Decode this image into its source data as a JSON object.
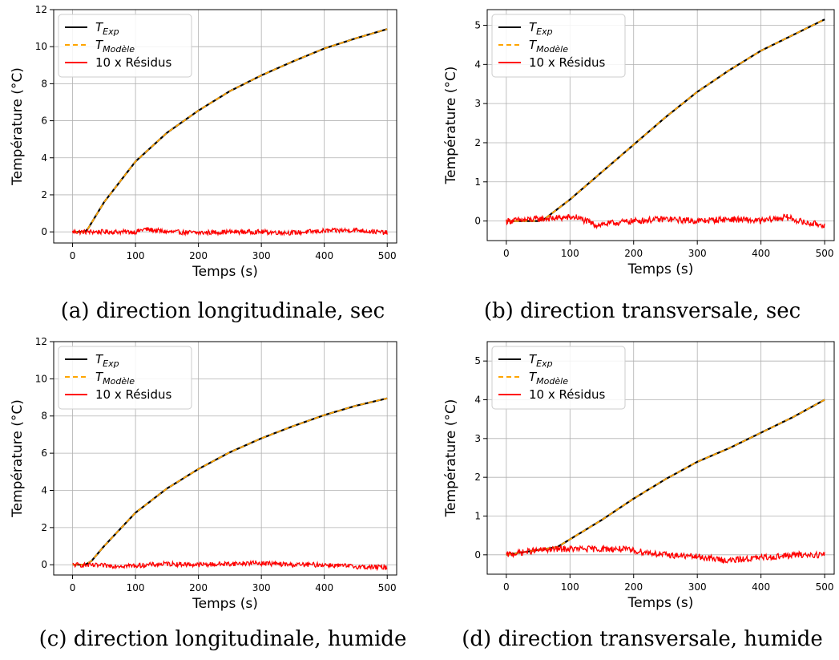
{
  "colors": {
    "exp": "#000000",
    "model": "#ffa500",
    "residus": "#ff0000",
    "grid": "#b0b0b0"
  },
  "legend_placement": "upper-left",
  "chart_data": [
    {
      "type": "line",
      "caption": "(a) direction longitudinale, sec",
      "xlabel": "Temps (s)",
      "ylabel": "Température (°C)",
      "xlim": [
        -30,
        515
      ],
      "ylim": [
        -0.6,
        12
      ],
      "xticks": [
        0,
        100,
        200,
        300,
        400,
        500
      ],
      "yticks": [
        0,
        2,
        4,
        6,
        8,
        10,
        12
      ],
      "grid": true,
      "legend": [
        "T_Exp",
        "T_Modèle",
        "10 x Résidus"
      ],
      "series": [
        {
          "name": "T_Exp",
          "x": [
            0,
            20,
            25,
            50,
            100,
            150,
            200,
            250,
            300,
            350,
            400,
            450,
            500
          ],
          "values": [
            0,
            0,
            0.2,
            1.6,
            3.8,
            5.35,
            6.55,
            7.6,
            8.45,
            9.2,
            9.9,
            10.45,
            10.95
          ]
        },
        {
          "name": "T_Modèle",
          "x": [
            0,
            20,
            25,
            50,
            100,
            150,
            200,
            250,
            300,
            350,
            400,
            450,
            500
          ],
          "values": [
            0,
            0,
            0.2,
            1.6,
            3.8,
            5.35,
            6.55,
            7.6,
            8.45,
            9.2,
            9.9,
            10.45,
            10.95
          ]
        },
        {
          "name": "10 x Résidus",
          "x": [
            0,
            50,
            100,
            115,
            150,
            200,
            250,
            300,
            350,
            400,
            450,
            500
          ],
          "values": [
            0,
            0,
            0,
            0.15,
            0,
            -0.05,
            0,
            0,
            -0.05,
            0.05,
            0.1,
            -0.05
          ]
        }
      ]
    },
    {
      "type": "line",
      "caption": "(b) direction transversale, sec",
      "xlabel": "Temps (s)",
      "ylabel": "Température (°C)",
      "xlim": [
        -30,
        515
      ],
      "ylim": [
        -0.5,
        5.4
      ],
      "xticks": [
        0,
        100,
        200,
        300,
        400,
        500
      ],
      "yticks": [
        0,
        1,
        2,
        3,
        4,
        5
      ],
      "grid": true,
      "legend": [
        "T_Exp",
        "T_Modèle",
        "10 x Résidus"
      ],
      "series": [
        {
          "name": "T_Exp",
          "x": [
            0,
            50,
            60,
            100,
            150,
            200,
            250,
            300,
            350,
            400,
            450,
            500
          ],
          "values": [
            0,
            0,
            0.05,
            0.55,
            1.25,
            1.95,
            2.65,
            3.3,
            3.85,
            4.35,
            4.75,
            5.15
          ]
        },
        {
          "name": "T_Modèle",
          "x": [
            0,
            50,
            60,
            100,
            150,
            200,
            250,
            300,
            350,
            400,
            450,
            500
          ],
          "values": [
            0,
            0,
            0.05,
            0.55,
            1.25,
            1.95,
            2.65,
            3.3,
            3.85,
            4.35,
            4.75,
            5.15
          ]
        },
        {
          "name": "10 x Résidus",
          "x": [
            0,
            50,
            110,
            140,
            200,
            250,
            300,
            350,
            400,
            440,
            470,
            500
          ],
          "values": [
            0,
            0.05,
            0.1,
            -0.1,
            0,
            0.05,
            0,
            0.05,
            0,
            0.1,
            -0.05,
            -0.1
          ]
        }
      ]
    },
    {
      "type": "line",
      "caption": "(c) direction longitudinale, humide",
      "xlabel": "Temps (s)",
      "ylabel": "Température (°C)",
      "xlim": [
        -30,
        515
      ],
      "ylim": [
        -0.55,
        12
      ],
      "xticks": [
        0,
        100,
        200,
        300,
        400,
        500
      ],
      "yticks": [
        0,
        2,
        4,
        6,
        8,
        10,
        12
      ],
      "grid": true,
      "legend": [
        "T_Exp",
        "T_Modèle",
        "10 x Résidus"
      ],
      "series": [
        {
          "name": "T_Exp",
          "x": [
            0,
            20,
            30,
            50,
            100,
            150,
            200,
            250,
            300,
            350,
            400,
            450,
            500
          ],
          "values": [
            0,
            0,
            0.2,
            1.0,
            2.8,
            4.1,
            5.15,
            6.05,
            6.8,
            7.45,
            8.05,
            8.55,
            8.95
          ]
        },
        {
          "name": "T_Modèle",
          "x": [
            0,
            20,
            30,
            50,
            100,
            150,
            200,
            250,
            300,
            350,
            400,
            450,
            500
          ],
          "values": [
            0,
            0,
            0.2,
            1.0,
            2.8,
            4.1,
            5.15,
            6.05,
            6.8,
            7.45,
            8.05,
            8.55,
            8.95
          ]
        },
        {
          "name": "10 x Résidus",
          "x": [
            0,
            50,
            100,
            150,
            200,
            250,
            290,
            350,
            400,
            450,
            500
          ],
          "values": [
            0,
            -0.05,
            -0.05,
            0.05,
            0,
            0.05,
            0.1,
            0,
            0,
            -0.1,
            -0.15
          ]
        }
      ]
    },
    {
      "type": "line",
      "caption": "(d) direction transversale, humide",
      "xlabel": "Temps (s)",
      "ylabel": "Température (°C)",
      "xlim": [
        -30,
        515
      ],
      "ylim": [
        -0.5,
        5.5
      ],
      "xticks": [
        0,
        100,
        200,
        300,
        400,
        500
      ],
      "yticks": [
        0,
        1,
        2,
        3,
        4,
        5
      ],
      "grid": true,
      "legend": [
        "T_Exp",
        "T_Modèle",
        "10 x Résidus"
      ],
      "series": [
        {
          "name": "T_Exp",
          "x": [
            0,
            80,
            100,
            150,
            200,
            250,
            300,
            350,
            400,
            450,
            500
          ],
          "values": [
            0,
            0.2,
            0.4,
            0.9,
            1.45,
            1.95,
            2.4,
            2.75,
            3.15,
            3.55,
            4.0
          ]
        },
        {
          "name": "T_Modèle",
          "x": [
            0,
            80,
            100,
            150,
            200,
            250,
            300,
            350,
            400,
            450,
            500
          ],
          "values": [
            0,
            0.2,
            0.4,
            0.9,
            1.45,
            1.95,
            2.4,
            2.75,
            3.15,
            3.55,
            4.0
          ]
        },
        {
          "name": "10 x Résidus",
          "x": [
            0,
            40,
            80,
            120,
            180,
            250,
            300,
            350,
            380,
            420,
            460,
            500
          ],
          "values": [
            0,
            0.1,
            0.15,
            0.15,
            0.15,
            0,
            -0.05,
            -0.15,
            -0.1,
            -0.05,
            0,
            0
          ]
        }
      ]
    }
  ]
}
